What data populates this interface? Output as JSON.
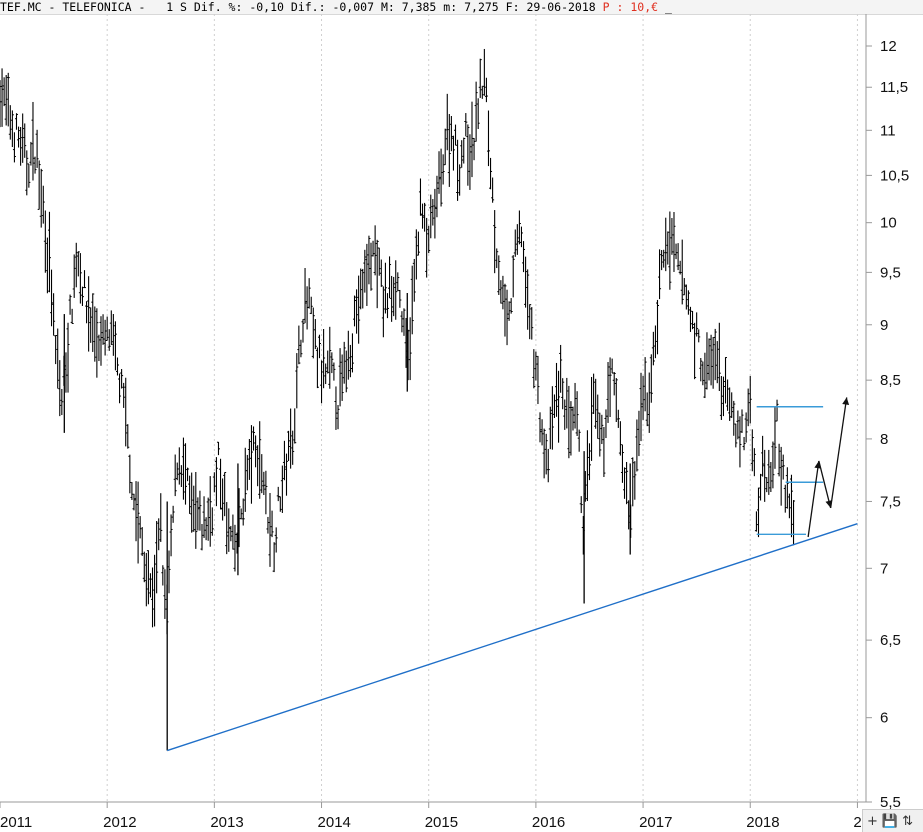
{
  "header": {
    "ticker": "TEF.MC",
    "name": "TELEFONICA",
    "interval": "1 S",
    "dif_pct_label": "Dif. %:",
    "dif_pct_value": "-0,10",
    "dif_label": "Dif.:",
    "dif_value": "-0,007",
    "max_label": "M:",
    "max_value": "7,385",
    "min_label": "m:",
    "min_value": "7,275",
    "date_label": "F:",
    "date_value": "29-06-2018",
    "price_label": "P",
    "price_value": "10,€",
    "extra": "_"
  },
  "toolbar": {
    "more_label": "+",
    "save_icon": "save-icon",
    "zoom_icon": "zoom-icon"
  },
  "chart_data": {
    "type": "ohlc",
    "xlabel": "",
    "ylabel": "",
    "x_ticks": [
      "2011",
      "2012",
      "2013",
      "2014",
      "2015",
      "2016",
      "2017",
      "2018",
      "2"
    ],
    "y_ticks": [
      "12",
      "11,5",
      "11",
      "10,5",
      "10",
      "9,5",
      "9",
      "8,5",
      "8",
      "7,5",
      "7",
      "6,5",
      "6",
      "5,5"
    ],
    "y_tick_values": [
      12,
      11.5,
      11,
      10.5,
      10,
      9.5,
      9,
      8.5,
      8,
      7.5,
      7,
      6.5,
      6,
      5.5
    ],
    "ylim": [
      5.5,
      12.2
    ],
    "xlim": [
      2011.0,
      2019.1
    ],
    "y_scale": "log",
    "grid": "vertical-dashed",
    "price_path": [
      {
        "t": 2011.0,
        "v": 11.5
      },
      {
        "t": 2011.05,
        "v": 11.3
      },
      {
        "t": 2011.12,
        "v": 11.0
      },
      {
        "t": 2011.18,
        "v": 10.9
      },
      {
        "t": 2011.25,
        "v": 10.6
      },
      {
        "t": 2011.33,
        "v": 10.8
      },
      {
        "t": 2011.4,
        "v": 10.2
      },
      {
        "t": 2011.46,
        "v": 9.6
      },
      {
        "t": 2011.52,
        "v": 8.7
      },
      {
        "t": 2011.58,
        "v": 8.3
      },
      {
        "t": 2011.65,
        "v": 9.0
      },
      {
        "t": 2011.72,
        "v": 9.7
      },
      {
        "t": 2011.8,
        "v": 9.2
      },
      {
        "t": 2011.86,
        "v": 9.0
      },
      {
        "t": 2011.94,
        "v": 8.8
      },
      {
        "t": 2012.02,
        "v": 8.9
      },
      {
        "t": 2012.1,
        "v": 8.6
      },
      {
        "t": 2012.18,
        "v": 8.1
      },
      {
        "t": 2012.25,
        "v": 7.5
      },
      {
        "t": 2012.32,
        "v": 7.2
      },
      {
        "t": 2012.38,
        "v": 6.9
      },
      {
        "t": 2012.43,
        "v": 6.8
      },
      {
        "t": 2012.5,
        "v": 7.3
      },
      {
        "t": 2012.55,
        "v": 6.6
      },
      {
        "t": 2012.6,
        "v": 7.2
      },
      {
        "t": 2012.66,
        "v": 7.9
      },
      {
        "t": 2012.72,
        "v": 7.7
      },
      {
        "t": 2012.8,
        "v": 7.4
      },
      {
        "t": 2012.88,
        "v": 7.3
      },
      {
        "t": 2012.96,
        "v": 7.4
      },
      {
        "t": 2013.04,
        "v": 7.8
      },
      {
        "t": 2013.12,
        "v": 7.3
      },
      {
        "t": 2013.2,
        "v": 7.1
      },
      {
        "t": 2013.28,
        "v": 7.6
      },
      {
        "t": 2013.36,
        "v": 7.9
      },
      {
        "t": 2013.44,
        "v": 7.8
      },
      {
        "t": 2013.5,
        "v": 7.4
      },
      {
        "t": 2013.56,
        "v": 7.2
      },
      {
        "t": 2013.62,
        "v": 7.6
      },
      {
        "t": 2013.7,
        "v": 7.9
      },
      {
        "t": 2013.76,
        "v": 8.3
      },
      {
        "t": 2013.82,
        "v": 9.1
      },
      {
        "t": 2013.88,
        "v": 9.2
      },
      {
        "t": 2013.94,
        "v": 8.8
      },
      {
        "t": 2014.02,
        "v": 8.5
      },
      {
        "t": 2014.08,
        "v": 8.6
      },
      {
        "t": 2014.16,
        "v": 8.3
      },
      {
        "t": 2014.24,
        "v": 8.7
      },
      {
        "t": 2014.32,
        "v": 9.1
      },
      {
        "t": 2014.4,
        "v": 9.4
      },
      {
        "t": 2014.46,
        "v": 9.7
      },
      {
        "t": 2014.52,
        "v": 9.6
      },
      {
        "t": 2014.58,
        "v": 9.2
      },
      {
        "t": 2014.64,
        "v": 9.3
      },
      {
        "t": 2014.7,
        "v": 9.5
      },
      {
        "t": 2014.76,
        "v": 9.0
      },
      {
        "t": 2014.8,
        "v": 8.6
      },
      {
        "t": 2014.86,
        "v": 9.3
      },
      {
        "t": 2014.92,
        "v": 10.2
      },
      {
        "t": 2014.98,
        "v": 9.8
      },
      {
        "t": 2015.04,
        "v": 10.0
      },
      {
        "t": 2015.1,
        "v": 10.4
      },
      {
        "t": 2015.16,
        "v": 10.9
      },
      {
        "t": 2015.22,
        "v": 11.0
      },
      {
        "t": 2015.28,
        "v": 10.6
      },
      {
        "t": 2015.34,
        "v": 10.9
      },
      {
        "t": 2015.4,
        "v": 10.7
      },
      {
        "t": 2015.46,
        "v": 11.3
      },
      {
        "t": 2015.52,
        "v": 11.7
      },
      {
        "t": 2015.56,
        "v": 10.9
      },
      {
        "t": 2015.62,
        "v": 9.9
      },
      {
        "t": 2015.68,
        "v": 9.3
      },
      {
        "t": 2015.74,
        "v": 8.9
      },
      {
        "t": 2015.8,
        "v": 9.6
      },
      {
        "t": 2015.86,
        "v": 10.0
      },
      {
        "t": 2015.92,
        "v": 9.2
      },
      {
        "t": 2015.98,
        "v": 8.8
      },
      {
        "t": 2016.04,
        "v": 8.2
      },
      {
        "t": 2016.1,
        "v": 7.7
      },
      {
        "t": 2016.16,
        "v": 8.2
      },
      {
        "t": 2016.24,
        "v": 8.5
      },
      {
        "t": 2016.32,
        "v": 8.0
      },
      {
        "t": 2016.38,
        "v": 8.2
      },
      {
        "t": 2016.44,
        "v": 7.3
      },
      {
        "t": 2016.48,
        "v": 7.7
      },
      {
        "t": 2016.54,
        "v": 8.3
      },
      {
        "t": 2016.62,
        "v": 7.9
      },
      {
        "t": 2016.7,
        "v": 8.6
      },
      {
        "t": 2016.78,
        "v": 8.1
      },
      {
        "t": 2016.84,
        "v": 7.6
      },
      {
        "t": 2016.88,
        "v": 7.3
      },
      {
        "t": 2016.94,
        "v": 7.9
      },
      {
        "t": 2017.0,
        "v": 8.3
      },
      {
        "t": 2017.06,
        "v": 8.4
      },
      {
        "t": 2017.12,
        "v": 8.9
      },
      {
        "t": 2017.16,
        "v": 9.5
      },
      {
        "t": 2017.22,
        "v": 9.8
      },
      {
        "t": 2017.28,
        "v": 9.7
      },
      {
        "t": 2017.34,
        "v": 9.5
      },
      {
        "t": 2017.4,
        "v": 9.3
      },
      {
        "t": 2017.46,
        "v": 9.0
      },
      {
        "t": 2017.52,
        "v": 8.8
      },
      {
        "t": 2017.58,
        "v": 8.5
      },
      {
        "t": 2017.64,
        "v": 8.7
      },
      {
        "t": 2017.7,
        "v": 8.6
      },
      {
        "t": 2017.76,
        "v": 8.4
      },
      {
        "t": 2017.82,
        "v": 8.2
      },
      {
        "t": 2017.88,
        "v": 8.1
      },
      {
        "t": 2017.94,
        "v": 8.0
      },
      {
        "t": 2018.0,
        "v": 8.3
      },
      {
        "t": 2018.06,
        "v": 7.4
      },
      {
        "t": 2018.12,
        "v": 7.8
      },
      {
        "t": 2018.18,
        "v": 7.7
      },
      {
        "t": 2018.24,
        "v": 8.2
      },
      {
        "t": 2018.3,
        "v": 7.7
      },
      {
        "t": 2018.36,
        "v": 7.5
      },
      {
        "t": 2018.42,
        "v": 7.3
      }
    ],
    "spikes": [
      {
        "t": 2011.6,
        "low": 8.05,
        "high": 9.1
      },
      {
        "t": 2012.56,
        "low": 5.8,
        "high": 7.5
      },
      {
        "t": 2013.22,
        "low": 6.95,
        "high": 7.8
      },
      {
        "t": 2014.8,
        "low": 8.4,
        "high": 9.3
      },
      {
        "t": 2016.45,
        "low": 6.75,
        "high": 7.9
      },
      {
        "t": 2016.88,
        "low": 7.1,
        "high": 7.8
      }
    ],
    "trendline": {
      "from": {
        "t": 2012.56,
        "v": 5.8
      },
      "to": {
        "t": 2019.0,
        "v": 7.33
      }
    },
    "horizontal_levels": [
      {
        "v": 8.27,
        "from": 2018.06,
        "to": 2018.68
      },
      {
        "v": 7.65,
        "from": 2018.33,
        "to": 2018.68
      },
      {
        "v": 7.25,
        "from": 2018.06,
        "to": 2018.52
      }
    ],
    "projection": [
      {
        "t": 2018.54,
        "v": 7.23
      },
      {
        "t": 2018.64,
        "v": 7.82
      },
      {
        "t": 2018.75,
        "v": 7.45
      },
      {
        "t": 2018.9,
        "v": 8.35
      }
    ],
    "colors": {
      "bars": "#000000",
      "trendline": "#1f6fc8",
      "levels": "#3a9bd8",
      "projection": "#111111",
      "grid": "#cfcfcf"
    }
  }
}
